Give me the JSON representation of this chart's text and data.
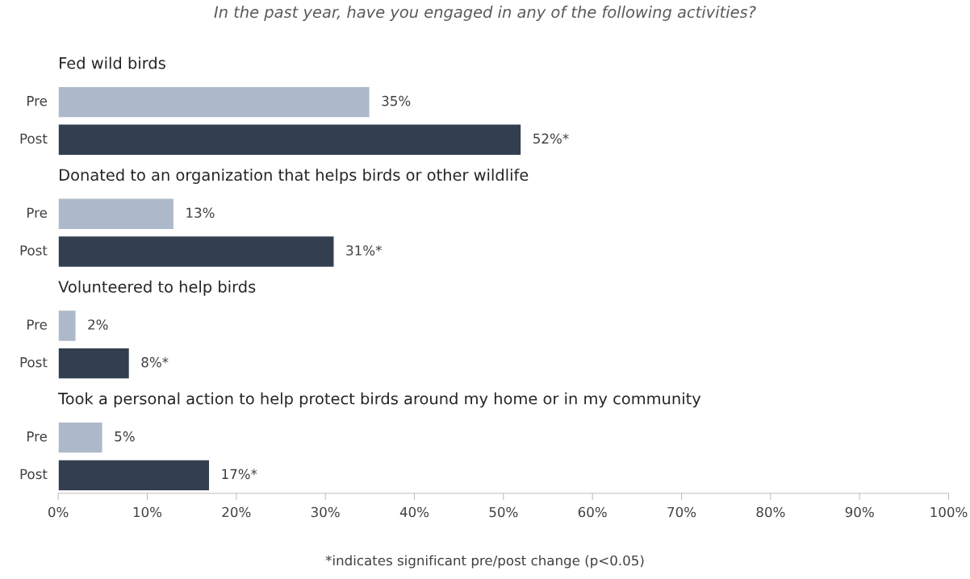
{
  "chart_data": {
    "type": "bar",
    "orientation": "horizontal",
    "title": "In the past year, have you engaged in any of the following activities?",
    "categories": [
      "Fed wild birds",
      "Donated to an organization that helps birds or other wildlife",
      "Volunteered to help birds",
      "Took a personal action to help protect birds around my home or in my community"
    ],
    "series": [
      {
        "name": "Pre",
        "color": "#adb9ca",
        "values": [
          35,
          13,
          2,
          5
        ],
        "value_labels": [
          "35%",
          "13%",
          "2%",
          "5%"
        ]
      },
      {
        "name": "Post",
        "color": "#333f50",
        "values": [
          52,
          31,
          8,
          17
        ],
        "value_labels": [
          "52%*",
          "31%*",
          "8%*",
          "17%*"
        ]
      }
    ],
    "xlim": [
      0,
      100
    ],
    "xticks": [
      {
        "value": 0,
        "label": "0%"
      },
      {
        "value": 10,
        "label": "10%"
      },
      {
        "value": 20,
        "label": "20%"
      },
      {
        "value": 30,
        "label": "30%"
      },
      {
        "value": 40,
        "label": "40%"
      },
      {
        "value": 50,
        "label": "50%"
      },
      {
        "value": 60,
        "label": "60%"
      },
      {
        "value": 70,
        "label": "70%"
      },
      {
        "value": 80,
        "label": "80%"
      },
      {
        "value": 90,
        "label": "90%"
      },
      {
        "value": 100,
        "label": "100%"
      }
    ],
    "grid": false,
    "legend": false,
    "annotations": [
      "*indicates significant pre/post change (p<0.05)"
    ]
  }
}
